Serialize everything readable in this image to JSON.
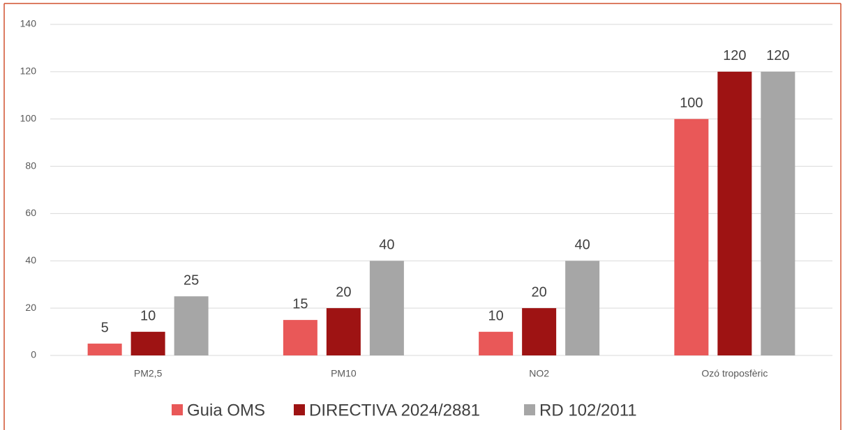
{
  "chart_data": {
    "type": "bar",
    "categories": [
      "PM2,5",
      "PM10",
      "NO2",
      "Ozó troposfèric"
    ],
    "series": [
      {
        "name": "Guia OMS",
        "color": "#e95858",
        "values": [
          5,
          15,
          10,
          100
        ]
      },
      {
        "name": "DIRECTIVA 2024/2881",
        "color": "#9e1313",
        "values": [
          10,
          20,
          20,
          120
        ]
      },
      {
        "name": "RD 102/2011",
        "color": "#a6a6a6",
        "values": [
          25,
          40,
          40,
          120
        ]
      }
    ],
    "ylim": [
      0,
      140
    ],
    "yticks": [
      0,
      20,
      40,
      60,
      80,
      100,
      120,
      140
    ],
    "grid": true,
    "legend": "bottom"
  }
}
